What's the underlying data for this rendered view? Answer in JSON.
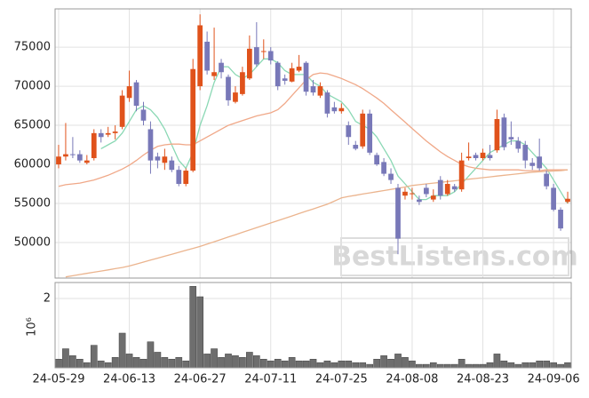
{
  "chart_data": {
    "type": "candlestick",
    "categories": [
      "24-05-29",
      null,
      null,
      null,
      null,
      null,
      null,
      null,
      null,
      null,
      "24-06-13",
      null,
      null,
      null,
      null,
      null,
      null,
      null,
      null,
      null,
      "24-06-27",
      null,
      null,
      null,
      null,
      null,
      null,
      null,
      null,
      null,
      "24-07-11",
      null,
      null,
      null,
      null,
      null,
      null,
      null,
      null,
      null,
      "24-07-25",
      null,
      null,
      null,
      null,
      null,
      null,
      null,
      null,
      null,
      "24-08-08",
      null,
      null,
      null,
      null,
      null,
      null,
      null,
      null,
      null,
      "24-08-23",
      null,
      null,
      null,
      null,
      null,
      null,
      null,
      null,
      null,
      "24-09-06",
      null,
      null
    ],
    "open": [
      60000,
      61000,
      61300,
      61300,
      60200,
      60800,
      64000,
      63800,
      64000,
      64800,
      68500,
      70500,
      67000,
      64500,
      61000,
      60200,
      60500,
      59300,
      57500,
      59200,
      70000,
      75700,
      71300,
      73000,
      71200,
      68000,
      69000,
      71000,
      75000,
      74500,
      74500,
      73000,
      71000,
      70600,
      72000,
      73000,
      70000,
      68800,
      69200,
      67300,
      66800,
      65000,
      62500,
      62300,
      66500,
      61200,
      60300,
      58800,
      57000,
      56000,
      56300,
      55500,
      57000,
      55500,
      58000,
      56200,
      57200,
      56800,
      60800,
      61200,
      60800,
      61200,
      61800,
      66000,
      63500,
      63000,
      62500,
      60200,
      61000,
      58800,
      57000,
      54200,
      55200
    ],
    "high": [
      62500,
      65300,
      63500,
      61800,
      61200,
      64500,
      64500,
      64800,
      65000,
      69500,
      72000,
      70800,
      68000,
      65500,
      61500,
      62000,
      61000,
      59800,
      59500,
      73500,
      79200,
      77000,
      77500,
      73500,
      71500,
      70000,
      72500,
      76500,
      78200,
      76000,
      75000,
      73200,
      71500,
      73000,
      74000,
      73200,
      70800,
      70500,
      69500,
      68000,
      67800,
      65500,
      63000,
      67000,
      67000,
      61500,
      60800,
      59500,
      57500,
      57000,
      57000,
      56000,
      57500,
      56800,
      58500,
      58000,
      57500,
      61500,
      62800,
      61500,
      62000,
      62500,
      67000,
      66500,
      65500,
      63500,
      63000,
      60800,
      63300,
      59200,
      57500,
      54500,
      56500
    ],
    "low": [
      59500,
      60500,
      60800,
      60200,
      60000,
      60500,
      62800,
      63500,
      63200,
      64500,
      68000,
      66800,
      65000,
      58800,
      59500,
      59300,
      59000,
      57200,
      57200,
      59000,
      69500,
      71500,
      70800,
      71000,
      67500,
      67800,
      68800,
      70800,
      72500,
      73500,
      72800,
      69500,
      70200,
      70500,
      71800,
      68800,
      68800,
      68500,
      66000,
      66500,
      66500,
      62500,
      61800,
      62000,
      61200,
      59800,
      58500,
      57500,
      48500,
      55500,
      55500,
      54800,
      55800,
      55200,
      55500,
      56000,
      56500,
      56500,
      60500,
      60500,
      60500,
      60500,
      61500,
      61800,
      62500,
      61500,
      59500,
      59300,
      59200,
      56800,
      54000,
      51500,
      55000
    ],
    "close": [
      61000,
      61300,
      61200,
      60500,
      60500,
      64000,
      63500,
      64000,
      64200,
      68800,
      70000,
      67500,
      65600,
      60500,
      60500,
      61000,
      59300,
      57500,
      59200,
      72200,
      77800,
      72000,
      71800,
      71800,
      68200,
      69200,
      71800,
      74800,
      72800,
      74500,
      73300,
      70000,
      70700,
      72300,
      72500,
      69300,
      69200,
      70000,
      66500,
      66800,
      67200,
      63500,
      62000,
      66500,
      61500,
      60000,
      58800,
      58000,
      50500,
      56500,
      56300,
      55200,
      56200,
      56000,
      56000,
      57500,
      56800,
      60500,
      61000,
      60800,
      61500,
      60800,
      65800,
      62200,
      63200,
      62000,
      60500,
      59800,
      59500,
      57200,
      54200,
      51800,
      55600
    ],
    "up_color": "#e0521b",
    "down_color": "#7878b8",
    "series": [
      {
        "color": "#8ad8b4",
        "values": [
          null,
          null,
          null,
          null,
          null,
          null,
          62000,
          62500,
          63000,
          64000,
          65500,
          67000,
          67500,
          67000,
          66000,
          64500,
          62500,
          60500,
          59500,
          61500,
          65000,
          67500,
          70500,
          72500,
          72500,
          71500,
          71000,
          71500,
          72500,
          73500,
          73500,
          73000,
          72000,
          71500,
          71500,
          71500,
          70500,
          70000,
          69000,
          68500,
          68000,
          67000,
          65500,
          65000,
          64500,
          63500,
          62000,
          60500,
          58500,
          57500,
          56500,
          55500,
          55500,
          56000,
          56000,
          56000,
          56500,
          57500,
          58500,
          59500,
          60500,
          61500,
          62000,
          62500,
          63000,
          63000,
          62500,
          61500,
          60500,
          59500,
          58000,
          56500,
          55000
        ]
      },
      {
        "color": "#f0a888",
        "values": [
          57200,
          57400,
          57500,
          57600,
          57800,
          58000,
          58300,
          58600,
          59000,
          59400,
          59900,
          60500,
          61200,
          61800,
          62300,
          62500,
          62600,
          62600,
          62500,
          62500,
          63000,
          63500,
          64000,
          64500,
          65000,
          65300,
          65600,
          65900,
          66200,
          66400,
          66600,
          67000,
          67800,
          68800,
          69800,
          70800,
          71500,
          71700,
          71600,
          71300,
          71000,
          70600,
          70200,
          69700,
          69100,
          68500,
          67800,
          67000,
          66200,
          65400,
          64600,
          63800,
          63000,
          62300,
          61600,
          61000,
          60500,
          60000,
          59700,
          59500,
          59400,
          59300,
          59300,
          59300,
          59300,
          59300,
          59200,
          59200,
          59200,
          59300,
          59300,
          59300,
          59300
        ]
      },
      {
        "color": "#ebb48e",
        "values": [
          null,
          45600,
          45750,
          45900,
          46050,
          46200,
          46350,
          46500,
          46650,
          46800,
          47000,
          47250,
          47500,
          47750,
          48000,
          48250,
          48500,
          48750,
          49000,
          49250,
          49500,
          49800,
          50100,
          50400,
          50700,
          51000,
          51300,
          51600,
          51900,
          52200,
          52500,
          52800,
          53100,
          53400,
          53700,
          54000,
          54300,
          54600,
          54900,
          55300,
          55700,
          55900,
          56050,
          56200,
          56350,
          56500,
          56650,
          56800,
          56950,
          57100,
          57300,
          57400,
          57500,
          57600,
          57700,
          57800,
          57900,
          58000,
          58100,
          58200,
          58300,
          58400,
          58500,
          58600,
          58700,
          58800,
          58900,
          59000,
          59050,
          59100,
          59150,
          59200,
          59300
        ]
      }
    ],
    "ylim": [
      45450,
      79900
    ],
    "yticks": [
      50000,
      55000,
      60000,
      65000,
      70000,
      75000
    ],
    "grid": true,
    "volume": {
      "color": "#6e6e6e",
      "label": "10⁶",
      "ylim": [
        0,
        2.46
      ],
      "yticks": [
        2
      ],
      "values": [
        0.25,
        0.55,
        0.35,
        0.25,
        0.15,
        0.65,
        0.2,
        0.15,
        0.3,
        1.0,
        0.4,
        0.3,
        0.25,
        0.75,
        0.45,
        0.3,
        0.25,
        0.3,
        0.2,
        2.35,
        2.05,
        0.4,
        0.55,
        0.3,
        0.4,
        0.35,
        0.3,
        0.45,
        0.35,
        0.25,
        0.2,
        0.25,
        0.2,
        0.3,
        0.2,
        0.2,
        0.25,
        0.15,
        0.2,
        0.15,
        0.2,
        0.2,
        0.15,
        0.15,
        0.1,
        0.25,
        0.35,
        0.25,
        0.4,
        0.3,
        0.2,
        0.1,
        0.1,
        0.15,
        0.1,
        0.1,
        0.1,
        0.25,
        0.1,
        0.1,
        0.1,
        0.15,
        0.4,
        0.2,
        0.15,
        0.1,
        0.15,
        0.15,
        0.2,
        0.2,
        0.15,
        0.1,
        0.15
      ]
    },
    "watermark": "BestListens.com"
  }
}
